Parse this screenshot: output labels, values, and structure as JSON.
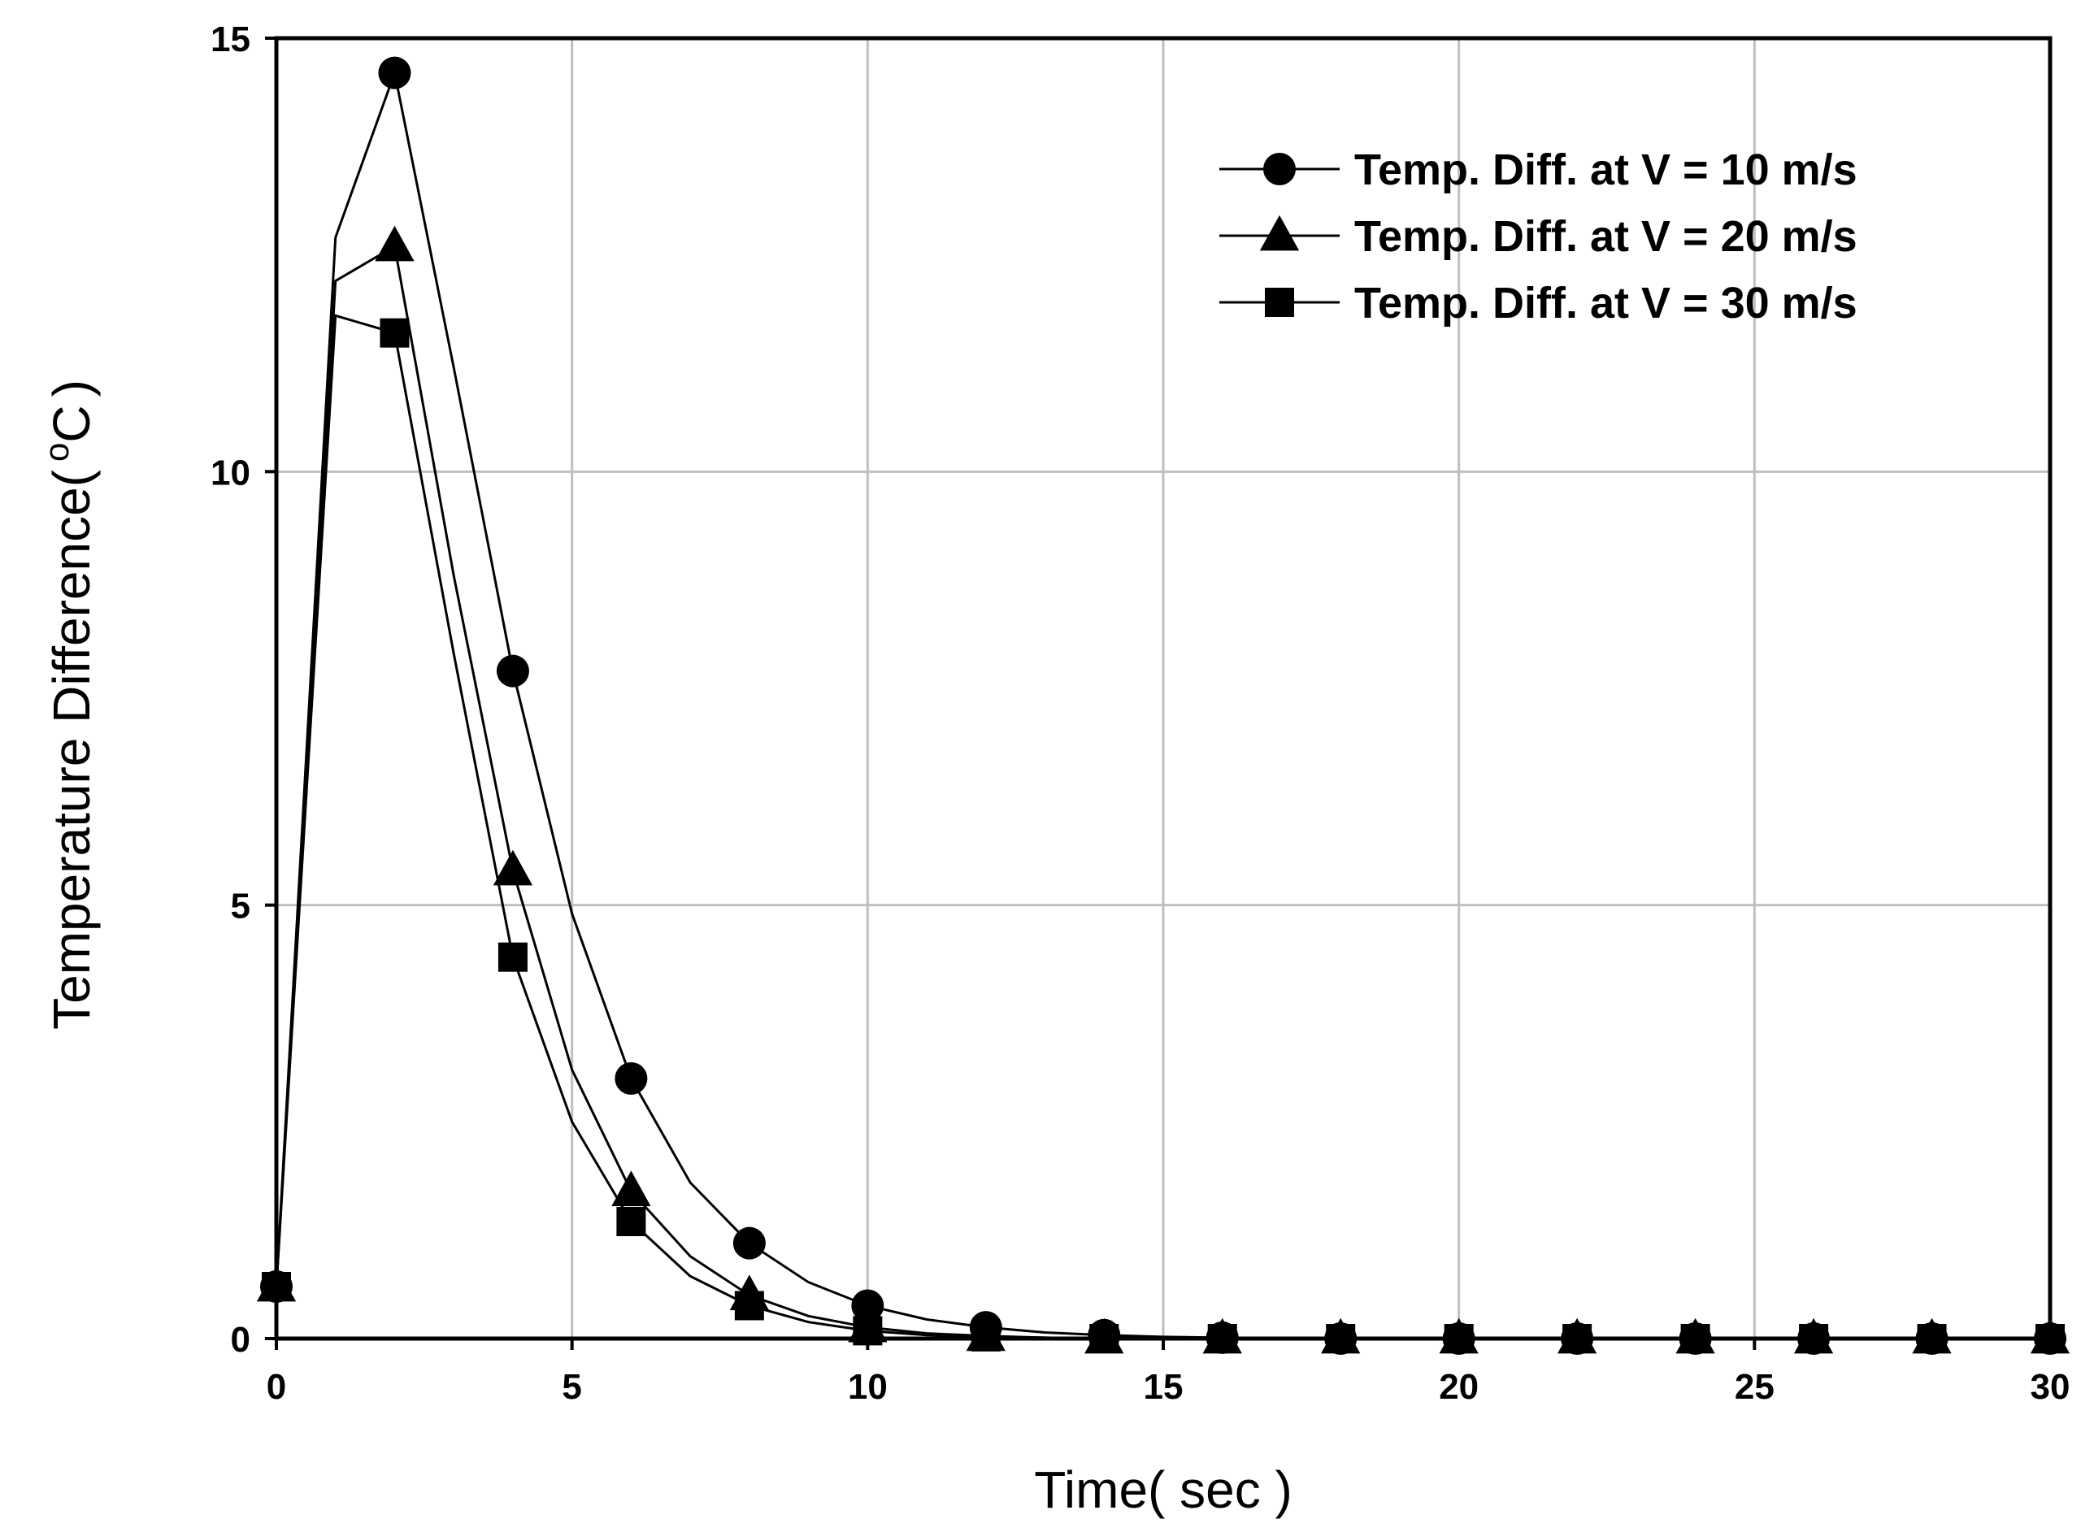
{
  "chart_data": {
    "type": "line",
    "title": "",
    "xlabel": "Time( sec )",
    "ylabel_main": "Temperature Difference(",
    "ylabel_sup": "o",
    "ylabel_unit": "C",
    "ylabel_close": ")",
    "xlim": [
      0,
      30
    ],
    "ylim": [
      0,
      15
    ],
    "xticks": [
      0,
      5,
      10,
      15,
      20,
      25,
      30
    ],
    "yticks": [
      0,
      5,
      10,
      15
    ],
    "grid": true,
    "legend_position": "top-right",
    "series": [
      {
        "name": "Temp. Diff. at V = 10 m/s",
        "marker": "circle",
        "x": [
          0,
          1,
          2,
          3,
          4,
          5,
          6,
          7,
          8,
          9,
          10,
          11,
          12,
          13,
          14,
          15,
          16,
          17,
          18,
          19,
          20,
          21,
          22,
          23,
          24,
          25,
          26,
          27,
          28,
          29,
          30
        ],
        "y": [
          0.6,
          12.7,
          14.6,
          11.2,
          7.7,
          4.9,
          3.0,
          1.8,
          1.1,
          0.65,
          0.38,
          0.22,
          0.13,
          0.07,
          0.04,
          0.02,
          0.01,
          0,
          0,
          0,
          0,
          0,
          0,
          0,
          0,
          0,
          0,
          0,
          0,
          0,
          0
        ],
        "marker_x": [
          0,
          2,
          4,
          6,
          8,
          10,
          12,
          14,
          16,
          18,
          20,
          22,
          24,
          26,
          28,
          30
        ]
      },
      {
        "name": "Temp. Diff. at V = 20 m/s",
        "marker": "triangle",
        "x": [
          0,
          1,
          2,
          3,
          4,
          5,
          6,
          7,
          8,
          9,
          10,
          11,
          12,
          13,
          14,
          15,
          16,
          17,
          18,
          19,
          20,
          21,
          22,
          23,
          24,
          25,
          26,
          27,
          28,
          29,
          30
        ],
        "y": [
          0.6,
          12.2,
          12.6,
          8.8,
          5.4,
          3.1,
          1.7,
          0.95,
          0.5,
          0.26,
          0.13,
          0.06,
          0.03,
          0.01,
          0,
          0,
          0,
          0,
          0,
          0,
          0,
          0,
          0,
          0,
          0,
          0,
          0,
          0,
          0,
          0,
          0
        ],
        "marker_x": [
          0,
          2,
          4,
          6,
          8,
          10,
          12,
          14,
          16,
          18,
          20,
          22,
          24,
          26,
          28,
          30
        ]
      },
      {
        "name": "Temp. Diff. at V = 30 m/s",
        "marker": "square",
        "x": [
          0,
          1,
          2,
          3,
          4,
          5,
          6,
          7,
          8,
          9,
          10,
          11,
          12,
          13,
          14,
          15,
          16,
          17,
          18,
          19,
          20,
          21,
          22,
          23,
          24,
          25,
          26,
          27,
          28,
          29,
          30
        ],
        "y": [
          0.6,
          11.8,
          11.6,
          7.9,
          4.4,
          2.5,
          1.35,
          0.72,
          0.38,
          0.19,
          0.09,
          0.04,
          0.02,
          0.01,
          0,
          0,
          0,
          0,
          0,
          0,
          0,
          0,
          0,
          0,
          0,
          0,
          0,
          0,
          0,
          0,
          0
        ],
        "marker_x": [
          0,
          2,
          4,
          6,
          8,
          10,
          12,
          14,
          16,
          18,
          20,
          22,
          24,
          26,
          28,
          30
        ]
      }
    ]
  }
}
